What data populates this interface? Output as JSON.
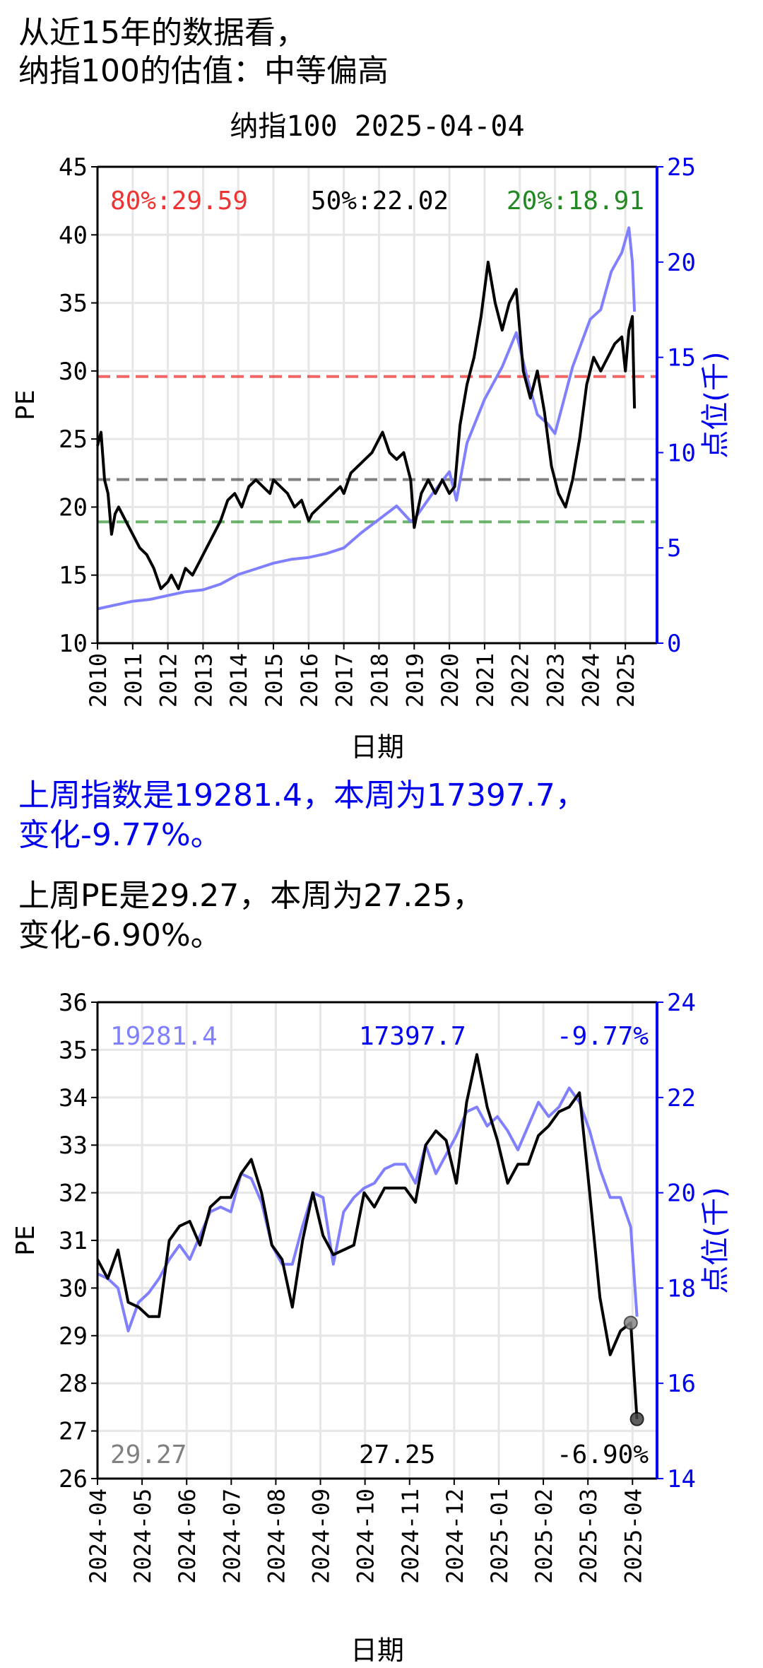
{
  "header": {
    "line1": "从近15年的数据看，",
    "line2": "纳指100的估值：中等偏高"
  },
  "summary": {
    "index_line1": "上周指数是19281.4，本周为17397.7，",
    "index_line2": "变化-9.77%。",
    "pe_line1": "上周PE是29.27，本周为27.25，",
    "pe_line2": "变化-6.90%。"
  },
  "colors": {
    "pe_line": "#000000",
    "index_line": "#8080ff",
    "right_axis": "#0000ee",
    "p80": "#ee3333",
    "p50": "#555555",
    "p20": "#3a9a3a"
  },
  "chart_data": [
    {
      "type": "line",
      "title": "纳指100 2025-04-04",
      "xlabel": "日期",
      "ylabel": "PE",
      "y2label": "点位(千)",
      "xlim": [
        2010,
        2025.9
      ],
      "ylim": [
        10,
        45
      ],
      "y2lim": [
        0,
        25
      ],
      "x_ticks": [
        "2010",
        "2011",
        "2012",
        "2013",
        "2014",
        "2015",
        "2016",
        "2017",
        "2018",
        "2019",
        "2020",
        "2021",
        "2022",
        "2023",
        "2024",
        "2025"
      ],
      "y_ticks": [
        "10",
        "15",
        "20",
        "25",
        "30",
        "35",
        "40",
        "45"
      ],
      "y2_ticks": [
        "0",
        "5",
        "10",
        "15",
        "20",
        "25"
      ],
      "grid": true,
      "annotations": {
        "p80": "80%:29.59",
        "p50": "50%:22.02",
        "p20": "20%:18.91"
      },
      "reference_lines": [
        {
          "label": "80%",
          "value": 29.59
        },
        {
          "label": "50%",
          "value": 22.02
        },
        {
          "label": "20%",
          "value": 18.91
        }
      ],
      "series": [
        {
          "axis": "left",
          "x": [
            2010.0,
            2010.1,
            2010.2,
            2010.3,
            2010.4,
            2010.5,
            2010.6,
            2010.8,
            2011.0,
            2011.2,
            2011.4,
            2011.6,
            2011.8,
            2012.0,
            2012.1,
            2012.3,
            2012.5,
            2012.7,
            2012.9,
            2013.1,
            2013.3,
            2013.5,
            2013.7,
            2013.9,
            2014.1,
            2014.3,
            2014.5,
            2014.7,
            2014.9,
            2015.0,
            2015.2,
            2015.4,
            2015.6,
            2015.8,
            2016.0,
            2016.1,
            2016.3,
            2016.5,
            2016.7,
            2016.9,
            2017.0,
            2017.2,
            2017.4,
            2017.6,
            2017.8,
            2018.0,
            2018.1,
            2018.3,
            2018.5,
            2018.7,
            2018.9,
            2019.0,
            2019.2,
            2019.4,
            2019.6,
            2019.8,
            2020.0,
            2020.15,
            2020.3,
            2020.5,
            2020.7,
            2020.9,
            2021.1,
            2021.3,
            2021.5,
            2021.7,
            2021.9,
            2022.1,
            2022.3,
            2022.5,
            2022.7,
            2022.9,
            2023.1,
            2023.3,
            2023.5,
            2023.7,
            2023.9,
            2024.1,
            2024.3,
            2024.5,
            2024.7,
            2024.9,
            2025.0,
            2025.1,
            2025.2,
            2025.26
          ],
          "values": [
            24.5,
            25.5,
            22,
            21,
            18,
            19.5,
            20,
            19,
            18,
            17,
            16.5,
            15.5,
            14,
            14.5,
            15,
            14,
            15.5,
            15,
            16,
            17,
            18,
            19,
            20.5,
            21,
            20,
            21.5,
            22,
            21.5,
            21,
            22,
            21.5,
            21,
            20,
            20.5,
            19,
            19.5,
            20,
            20.5,
            21,
            21.5,
            21,
            22.5,
            23,
            23.5,
            24,
            25,
            25.5,
            24,
            23.5,
            24,
            22,
            18.5,
            21,
            22,
            21,
            22,
            21,
            21.5,
            26,
            29,
            31,
            34,
            38,
            35,
            33,
            35,
            36,
            30,
            28,
            30,
            27,
            23,
            21,
            20,
            22,
            25,
            29,
            31,
            30,
            31,
            32,
            32.5,
            30,
            33,
            34,
            27.25
          ]
        },
        {
          "axis": "right",
          "x": [
            2010.0,
            2010.5,
            2011.0,
            2011.5,
            2012.0,
            2012.5,
            2013.0,
            2013.5,
            2014.0,
            2014.5,
            2015.0,
            2015.5,
            2016.0,
            2016.5,
            2017.0,
            2017.5,
            2018.0,
            2018.5,
            2018.9,
            2019.0,
            2019.5,
            2020.0,
            2020.2,
            2020.5,
            2021.0,
            2021.5,
            2021.9,
            2022.2,
            2022.5,
            2022.8,
            2023.0,
            2023.5,
            2024.0,
            2024.3,
            2024.6,
            2024.9,
            2025.1,
            2025.2,
            2025.26
          ],
          "values": [
            1.8,
            2.0,
            2.2,
            2.3,
            2.5,
            2.7,
            2.8,
            3.1,
            3.6,
            3.9,
            4.2,
            4.4,
            4.5,
            4.7,
            5.0,
            5.8,
            6.5,
            7.2,
            6.4,
            6.5,
            7.8,
            9.0,
            7.5,
            10.5,
            12.8,
            14.5,
            16.3,
            14.0,
            12.0,
            11.5,
            11.0,
            14.5,
            17.0,
            17.5,
            19.5,
            20.5,
            21.8,
            20.0,
            17.4
          ]
        }
      ]
    },
    {
      "type": "line",
      "xlabel": "日期",
      "ylabel": "PE",
      "y2label": "点位(千)",
      "xlim": [
        0,
        12.55
      ],
      "ylim": [
        26,
        36
      ],
      "y2lim": [
        14,
        24
      ],
      "x_ticks": [
        "2024-04",
        "2024-05",
        "2024-06",
        "2024-07",
        "2024-08",
        "2024-09",
        "2024-10",
        "2024-11",
        "2024-12",
        "2025-01",
        "2025-02",
        "2025-03",
        "2025-04"
      ],
      "y_ticks": [
        "26",
        "27",
        "28",
        "29",
        "30",
        "31",
        "32",
        "33",
        "34",
        "35",
        "36"
      ],
      "y2_ticks": [
        "14",
        "16",
        "18",
        "20",
        "22",
        "24"
      ],
      "grid": true,
      "annotations": {
        "index_last_week": "19281.4",
        "index_this_week": "17397.7",
        "index_change": "-9.77%",
        "pe_last_week": "29.27",
        "pe_this_week": "27.25",
        "pe_change": "-6.90%"
      },
      "series": [
        {
          "axis": "left",
          "x": [
            0.0,
            0.23,
            0.46,
            0.69,
            0.92,
            1.15,
            1.38,
            1.61,
            1.84,
            2.07,
            2.3,
            2.53,
            2.76,
            2.99,
            3.22,
            3.45,
            3.68,
            3.91,
            4.14,
            4.37,
            4.6,
            4.83,
            5.06,
            5.29,
            5.52,
            5.75,
            5.98,
            6.21,
            6.44,
            6.67,
            6.9,
            7.13,
            7.36,
            7.59,
            7.82,
            8.05,
            8.28,
            8.51,
            8.74,
            8.97,
            9.2,
            9.43,
            9.66,
            9.89,
            10.12,
            10.35,
            10.58,
            10.81,
            11.04,
            11.27,
            11.5,
            11.73,
            11.96,
            12.1
          ],
          "values": [
            30.6,
            30.2,
            30.8,
            29.7,
            29.6,
            29.4,
            29.4,
            31.0,
            31.3,
            31.4,
            30.9,
            31.7,
            31.9,
            31.9,
            32.4,
            32.7,
            32.0,
            30.9,
            30.6,
            29.6,
            31.0,
            32.0,
            31.1,
            30.7,
            30.8,
            30.9,
            32.0,
            31.7,
            32.1,
            32.1,
            32.1,
            31.8,
            33.0,
            33.3,
            33.1,
            32.2,
            33.9,
            34.9,
            33.8,
            33.1,
            32.2,
            32.6,
            32.6,
            33.2,
            33.4,
            33.7,
            33.8,
            34.1,
            32.0,
            29.8,
            28.6,
            29.1,
            29.27,
            27.25
          ]
        },
        {
          "axis": "right",
          "x": [
            0.0,
            0.23,
            0.46,
            0.69,
            0.92,
            1.15,
            1.38,
            1.61,
            1.84,
            2.07,
            2.3,
            2.53,
            2.76,
            2.99,
            3.22,
            3.45,
            3.68,
            3.91,
            4.14,
            4.37,
            4.6,
            4.83,
            5.06,
            5.29,
            5.52,
            5.75,
            5.98,
            6.21,
            6.44,
            6.67,
            6.9,
            7.13,
            7.36,
            7.59,
            7.82,
            8.05,
            8.28,
            8.51,
            8.74,
            8.97,
            9.2,
            9.43,
            9.66,
            9.89,
            10.12,
            10.35,
            10.58,
            10.81,
            11.04,
            11.27,
            11.5,
            11.73,
            11.96,
            12.1
          ],
          "values": [
            18.3,
            18.2,
            18.0,
            17.1,
            17.7,
            17.9,
            18.2,
            18.6,
            18.9,
            18.6,
            19.1,
            19.6,
            19.7,
            19.6,
            20.4,
            20.3,
            19.8,
            18.9,
            18.5,
            18.5,
            19.3,
            20.0,
            19.9,
            18.5,
            19.6,
            19.9,
            20.1,
            20.2,
            20.5,
            20.6,
            20.6,
            20.2,
            21.0,
            20.4,
            20.8,
            21.2,
            21.7,
            21.8,
            21.4,
            21.6,
            21.3,
            20.9,
            21.4,
            21.9,
            21.6,
            21.8,
            22.2,
            21.9,
            21.3,
            20.5,
            19.9,
            19.9,
            19.28,
            17.4
          ]
        }
      ]
    }
  ]
}
